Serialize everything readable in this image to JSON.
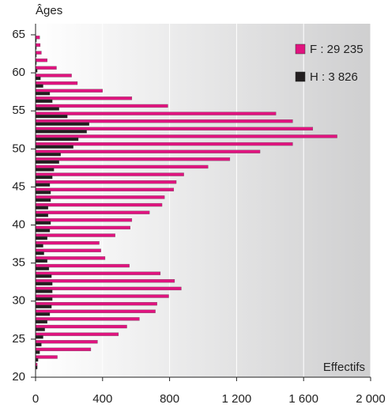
{
  "chart_data": {
    "type": "barh",
    "y_label": "Âges",
    "x_label": "Effectifs",
    "y": [
      65,
      64,
      63,
      62,
      61,
      60,
      59,
      58,
      57,
      56,
      55,
      54,
      53,
      52,
      51,
      50,
      49,
      48,
      47,
      46,
      45,
      44,
      43,
      42,
      41,
      40,
      39,
      38,
      37,
      36,
      35,
      34,
      33,
      32,
      31,
      30,
      29,
      28,
      27,
      26,
      25,
      24,
      23,
      22
    ],
    "series": [
      {
        "name": "F : 29 235",
        "color": "#e0147f",
        "values": [
          25,
          28,
          35,
          70,
          125,
          215,
          250,
          400,
          575,
          790,
          1435,
          1535,
          1655,
          1800,
          1535,
          1340,
          1160,
          1030,
          885,
          840,
          825,
          770,
          755,
          680,
          575,
          565,
          475,
          380,
          390,
          415,
          560,
          745,
          830,
          870,
          795,
          725,
          715,
          620,
          545,
          495,
          370,
          330,
          130,
          10
        ]
      },
      {
        "name": "H :  3 826",
        "color": "#231f20",
        "values": [
          5,
          5,
          5,
          5,
          10,
          30,
          45,
          85,
          100,
          140,
          190,
          320,
          305,
          255,
          225,
          150,
          140,
          110,
          100,
          85,
          90,
          90,
          75,
          75,
          90,
          85,
          70,
          45,
          50,
          70,
          80,
          95,
          100,
          100,
          100,
          95,
          85,
          70,
          55,
          45,
          35,
          25,
          15,
          10
        ]
      }
    ],
    "xlim": [
      0,
      2000
    ],
    "xticks": [
      0,
      400,
      800,
      {
        "value": 1200,
        "label": "1 200"
      },
      {
        "value": 1600,
        "label": "1 600"
      },
      {
        "value": 2000,
        "label": "2 000"
      }
    ],
    "ylim": [
      20,
      65
    ],
    "yticks": [
      20,
      25,
      30,
      35,
      40,
      45,
      50,
      55,
      60,
      65
    ],
    "grid": true
  }
}
